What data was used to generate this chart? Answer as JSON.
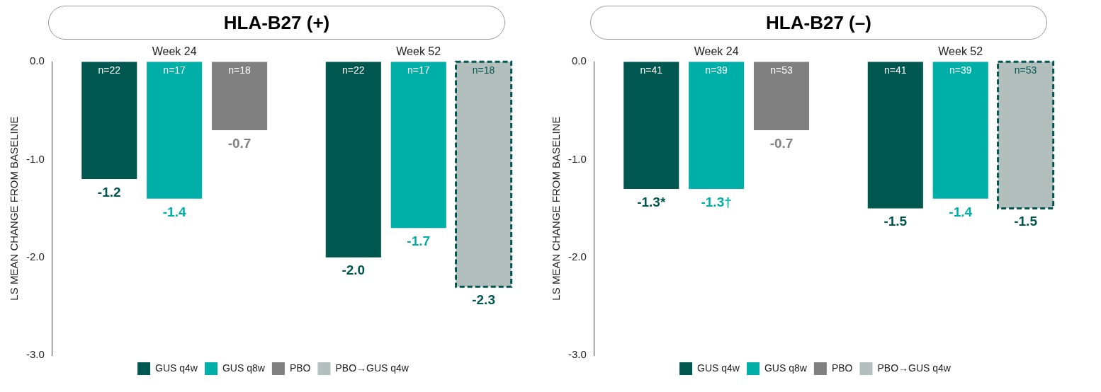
{
  "chart_data": [
    {
      "type": "bar",
      "title": "HLA-B27 (+)",
      "ylabel": "LS MEAN CHANGE FROM BASELINE",
      "categories": [
        "Week 24",
        "Week 52"
      ],
      "ylim": [
        -3,
        0
      ],
      "yticks": [
        {
          "value": 0,
          "label": "0.0"
        },
        {
          "value": -1,
          "label": "-1.0"
        },
        {
          "value": -2,
          "label": "-2.0"
        },
        {
          "value": -3,
          "label": "-3.0"
        }
      ],
      "grid": false,
      "legend": "bottom",
      "series": [
        {
          "name": "GUS q4w",
          "color": "#00574f",
          "values": [
            -1.2,
            -2.0
          ],
          "value_labels": [
            "-1.2",
            "-2.0"
          ]
        },
        {
          "name": "GUS q8w",
          "color": "#00b0a8",
          "values": [
            -1.4,
            -1.7
          ],
          "value_labels": [
            "-1.4",
            "-1.7"
          ]
        },
        {
          "name": "PBO",
          "color": "#808080",
          "values": [
            -0.7,
            null
          ],
          "value_labels": [
            "-0.7",
            null
          ]
        },
        {
          "name": "PBO→GUS q4w",
          "color": "#b3bfbd",
          "line_style": "dashed",
          "values": [
            null,
            -2.3
          ],
          "value_labels": [
            null,
            "-2.3"
          ]
        }
      ],
      "annotations": [
        "n=22",
        "n=17",
        "n=18",
        "n=22",
        "n=17",
        "n=18"
      ]
    },
    {
      "type": "bar",
      "title": "HLA-B27 (–)",
      "ylabel": "LS MEAN CHANGE FROM BASELINE",
      "categories": [
        "Week 24",
        "Week 52"
      ],
      "ylim": [
        -3,
        0
      ],
      "yticks": [
        {
          "value": 0,
          "label": "0.0"
        },
        {
          "value": -1,
          "label": "-1.0"
        },
        {
          "value": -2,
          "label": "-2.0"
        },
        {
          "value": -3,
          "label": "-3.0"
        }
      ],
      "grid": false,
      "legend": "bottom",
      "series": [
        {
          "name": "GUS q4w",
          "color": "#00574f",
          "values": [
            -1.3,
            -1.5
          ],
          "value_labels": [
            "-1.3*",
            "-1.5"
          ]
        },
        {
          "name": "GUS q8w",
          "color": "#00b0a8",
          "values": [
            -1.3,
            -1.4
          ],
          "value_labels": [
            "-1.3†",
            "-1.4"
          ]
        },
        {
          "name": "PBO",
          "color": "#808080",
          "values": [
            -0.7,
            null
          ],
          "value_labels": [
            "-0.7",
            null
          ]
        },
        {
          "name": "PBO→GUS q4w",
          "color": "#b3bfbd",
          "line_style": "dashed",
          "values": [
            null,
            -1.5
          ],
          "value_labels": [
            null,
            "-1.5"
          ]
        }
      ],
      "annotations": [
        "n=41",
        "n=39",
        "n=53",
        "n=41",
        "n=39",
        "n=53"
      ]
    }
  ]
}
